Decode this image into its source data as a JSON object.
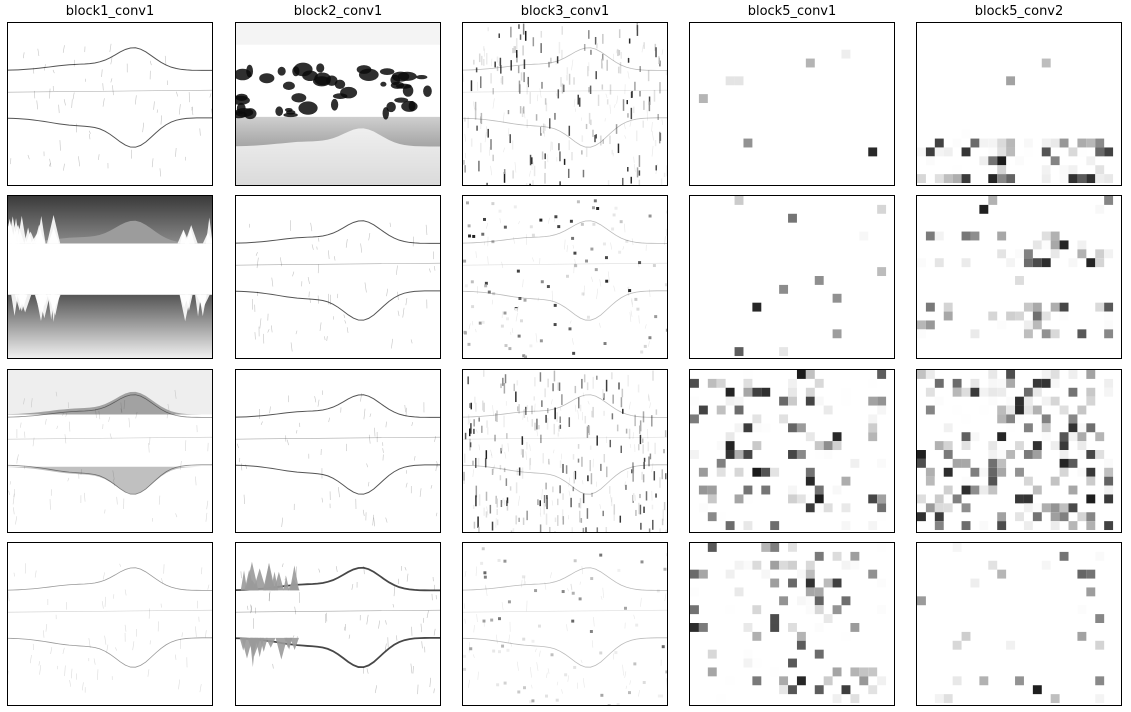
{
  "chart_data": {
    "type": "heatmap",
    "description": "grid of grayscale feature-map activations",
    "layout": {
      "rows": 4,
      "cols": 5
    },
    "columns": [
      {
        "title": "block1_conv1",
        "resolution": "fine",
        "panels": [
          "edges-light",
          "sky-and-water-dark",
          "mountain-gray",
          "edges-faint"
        ]
      },
      {
        "title": "block2_conv1",
        "resolution": "fine",
        "panels": [
          "trees-dark-water-gray",
          "edges-light",
          "edges-light",
          "edges-embossed"
        ]
      },
      {
        "title": "block3_conv1",
        "resolution": "medium",
        "panels": [
          "texture-light",
          "sparse-spots",
          "texture-vertical",
          "sparse-faint"
        ]
      },
      {
        "title": "block5_conv1",
        "resolution": "coarse",
        "panels": [
          "few-spots",
          "few-spots",
          "scattered-blocks",
          "scattered-blocks"
        ]
      },
      {
        "title": "block5_conv2",
        "resolution": "coarse",
        "panels": [
          "bottom-band",
          "mid-blobs",
          "dense-blocks",
          "sparse-blobs"
        ]
      }
    ],
    "colormap": "gray_r",
    "axes_visible": false,
    "grid": false
  },
  "colors": {
    "background": "#ffffff",
    "frame": "#000000",
    "ink": "#1a1a1a"
  }
}
